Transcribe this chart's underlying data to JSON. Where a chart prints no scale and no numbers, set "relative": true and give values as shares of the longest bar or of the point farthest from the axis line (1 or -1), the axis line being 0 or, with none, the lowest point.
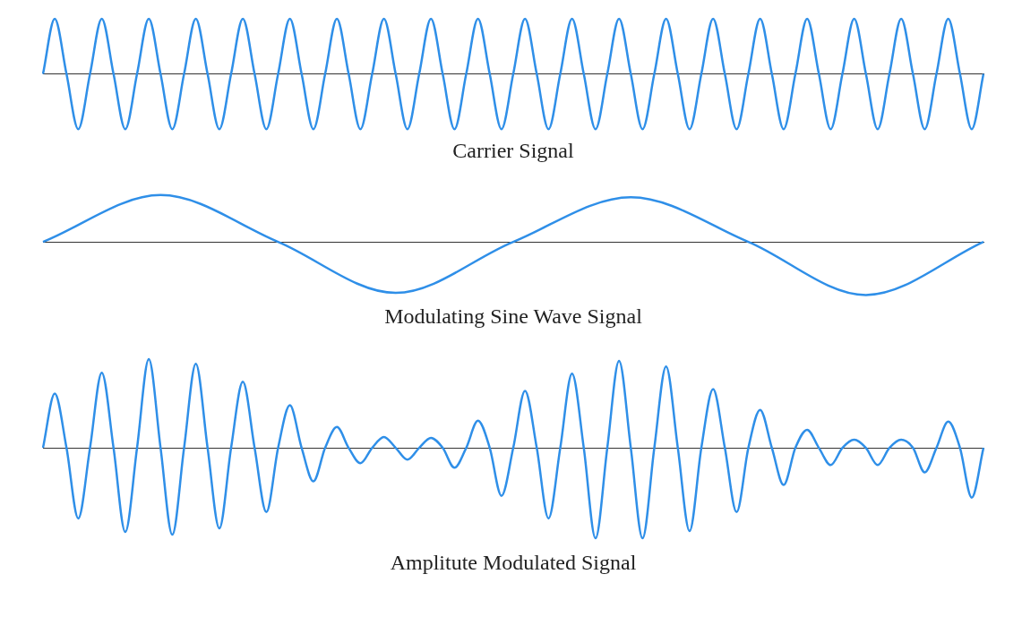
{
  "chart_data": [
    {
      "type": "line",
      "title": "Carrier Signal",
      "relative": true,
      "color": "#2f8fe8",
      "categories": [
        null,
        null,
        null,
        null,
        null,
        null,
        null,
        null,
        null,
        null,
        null,
        null,
        null,
        null,
        null,
        null,
        null,
        null,
        null,
        null,
        null,
        null,
        null,
        null,
        null,
        null,
        null,
        null,
        null,
        null,
        null,
        null,
        null,
        null,
        null,
        null,
        null,
        null,
        null,
        null,
        null,
        null,
        null,
        null,
        null,
        null,
        null,
        null,
        null,
        null,
        null,
        null,
        null,
        null,
        null,
        null,
        null,
        null,
        null,
        null,
        null,
        null,
        null,
        null,
        null,
        null,
        null,
        null,
        null,
        null,
        null,
        null,
        null,
        null,
        null,
        null,
        null,
        null,
        null,
        null,
        null
      ],
      "values": [
        0,
        1,
        0,
        -1,
        0,
        1,
        0,
        -1,
        0,
        1,
        0,
        -1,
        0,
        1,
        0,
        -1,
        0,
        1,
        0,
        -1,
        0,
        1,
        0,
        -1,
        0,
        1,
        0,
        -1,
        0,
        1,
        0,
        -1,
        0,
        1,
        0,
        -1,
        0,
        1,
        0,
        -1,
        0,
        1,
        0,
        -1,
        0,
        1,
        0,
        -1,
        0,
        1,
        0,
        -1,
        0,
        1,
        0,
        -1,
        0,
        1,
        0,
        -1,
        0,
        1,
        0,
        -1,
        0,
        1,
        0,
        -1,
        0,
        1,
        0,
        -1,
        0,
        1,
        0,
        -1,
        0,
        1,
        0,
        -1,
        0
      ]
    },
    {
      "type": "line",
      "title": "Modulating Sine Wave Signal",
      "relative": true,
      "color": "#2f8fe8",
      "categories": [
        null,
        null,
        null,
        null,
        null,
        null,
        null,
        null,
        null
      ],
      "values": [
        0,
        0.88,
        0,
        -0.96,
        0,
        0.84,
        0,
        -1,
        0
      ]
    },
    {
      "type": "line",
      "title": "Amplitute Modulated Signal",
      "relative": true,
      "color": "#2f8fe8",
      "categories": [
        null,
        null,
        null,
        null,
        null,
        null,
        null,
        null,
        null,
        null,
        null,
        null,
        null,
        null,
        null,
        null,
        null,
        null,
        null,
        null,
        null,
        null,
        null,
        null,
        null,
        null,
        null,
        null,
        null,
        null,
        null,
        null,
        null,
        null,
        null,
        null,
        null,
        null,
        null,
        null,
        null,
        null,
        null,
        null,
        null,
        null,
        null,
        null,
        null,
        null,
        null,
        null,
        null,
        null,
        null,
        null,
        null,
        null,
        null,
        null,
        null,
        null,
        null,
        null,
        null,
        null,
        null,
        null,
        null,
        null,
        null,
        null,
        null,
        null,
        null,
        null,
        null,
        null,
        null,
        null,
        null
      ],
      "values": [
        0,
        0.6,
        0,
        -0.78,
        0,
        0.83,
        0,
        -0.93,
        0,
        0.98,
        0,
        -0.96,
        0,
        0.93,
        0,
        -0.89,
        0,
        0.73,
        0,
        -0.71,
        0,
        0.47,
        0,
        -0.37,
        0,
        0.23,
        0,
        -0.17,
        0,
        0.12,
        0,
        -0.13,
        0,
        0.11,
        0,
        -0.22,
        0,
        0.3,
        0,
        -0.53,
        0,
        0.63,
        0,
        -0.78,
        0,
        0.82,
        0,
        -1,
        0,
        0.96,
        0,
        -1,
        0,
        0.9,
        0,
        -0.92,
        0,
        0.65,
        0,
        -0.71,
        0,
        0.42,
        0,
        -0.41,
        0,
        0.2,
        0,
        -0.19,
        0,
        0.09,
        0,
        -0.19,
        0,
        0.09,
        0,
        -0.27,
        0,
        0.29,
        0,
        -0.55,
        0
      ]
    }
  ]
}
